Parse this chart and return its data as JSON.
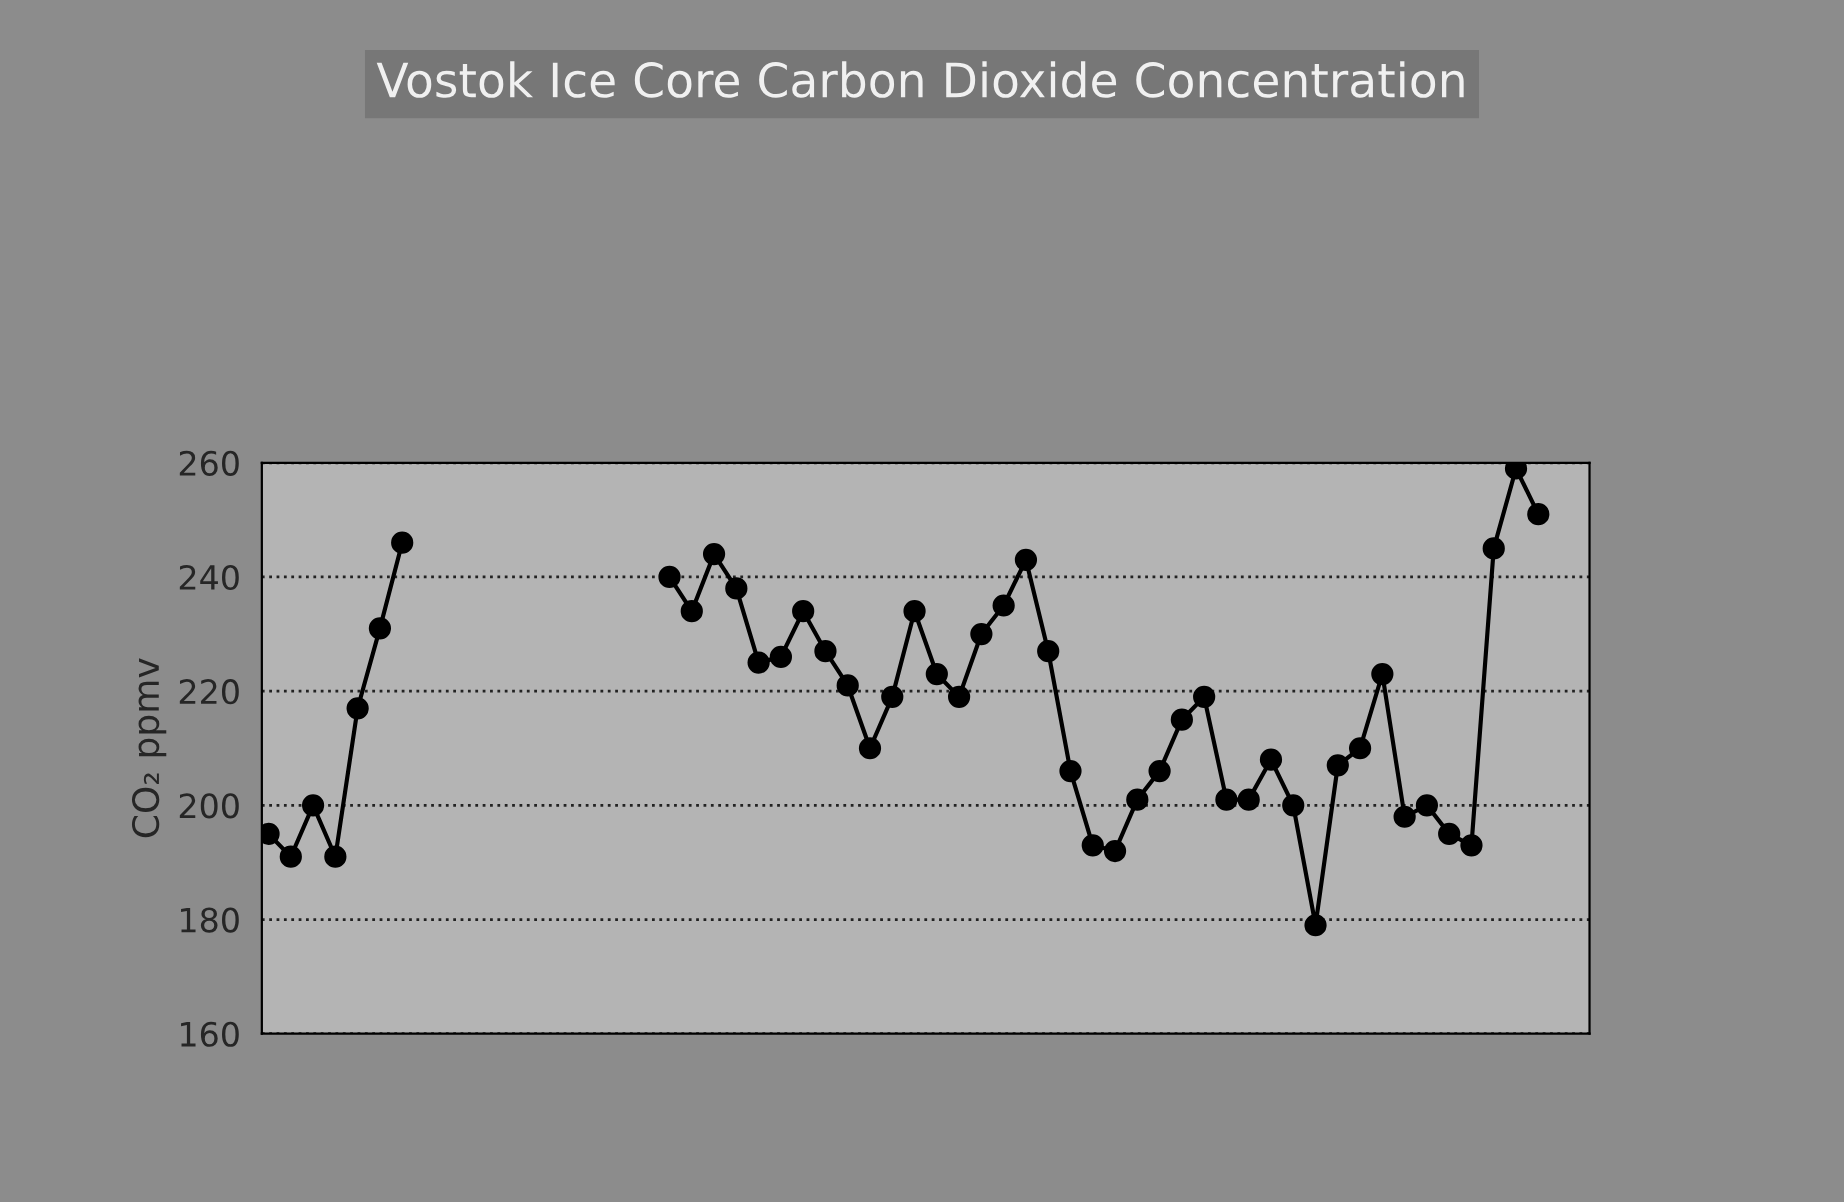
{
  "chart_data": {
    "type": "line",
    "title": "Vostok Ice Core Carbon Dioxide Concentration",
    "ylabel": "CO₂ ppmv",
    "categories": [
      null,
      null,
      null,
      null,
      null,
      null,
      null,
      null,
      null,
      null,
      null,
      null,
      null,
      null,
      null,
      null,
      null,
      null,
      null,
      null,
      null,
      null,
      null,
      null,
      null,
      null,
      null,
      null,
      null,
      null,
      null,
      null,
      null,
      null,
      null,
      null,
      null,
      null,
      null,
      null,
      null,
      null,
      null,
      null,
      null,
      null,
      null,
      null,
      null,
      null,
      null,
      null,
      null,
      null,
      null,
      null,
      null,
      null,
      null,
      null
    ],
    "series": [
      {
        "color": "#000000",
        "values": [
          195,
          191,
          200,
          191,
          217,
          231,
          246,
          null,
          null,
          null,
          null,
          null,
          null,
          null,
          null,
          null,
          null,
          null,
          null,
          null,
          null,
          null,
          null,
          null,
          null,
          null,
          null,
          null,
          null,
          null,
          null,
          null,
          null,
          null,
          null,
          null,
          null,
          null,
          null,
          null,
          null,
          null,
          null,
          null,
          null,
          null,
          null,
          null,
          null,
          null,
          null,
          null,
          null,
          null,
          null,
          null,
          null,
          null,
          null,
          null
        ]
      },
      {
        "color": "#000000",
        "values": [
          null,
          null,
          null,
          null,
          null,
          null,
          null,
          null,
          null,
          null,
          null,
          null,
          null,
          null,
          null,
          null,
          null,
          null,
          240,
          234,
          244,
          238,
          225,
          226,
          234,
          227,
          221,
          210,
          219,
          234,
          223,
          219,
          230,
          235,
          243,
          227,
          206,
          193,
          192,
          201,
          206,
          215,
          219,
          201,
          201,
          208,
          200,
          179,
          207,
          210,
          223,
          198,
          200,
          195,
          193,
          245,
          259,
          251,
          null,
          null
        ]
      }
    ],
    "ylim": [
      160,
      260
    ],
    "yticks": [
      160,
      180,
      200,
      220,
      240,
      260
    ],
    "grid": "y",
    "marker": "circle",
    "line_style": "solid"
  }
}
